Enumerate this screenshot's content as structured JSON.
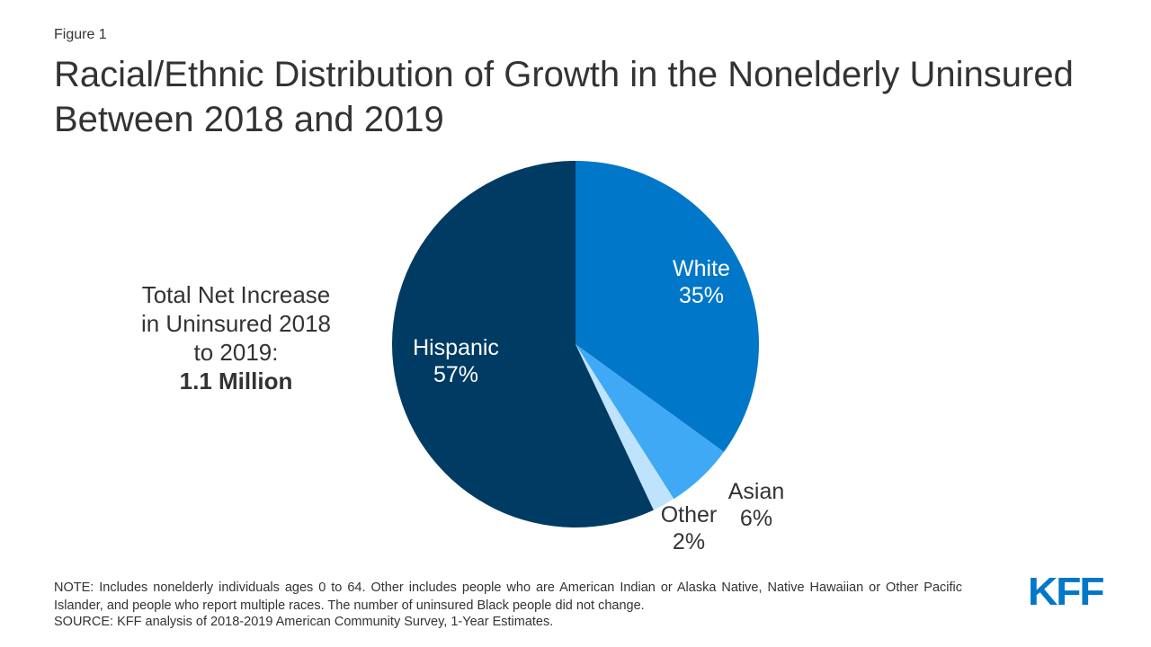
{
  "figure_label": "Figure 1",
  "chart_data": {
    "type": "pie",
    "title": "Racial/Ethnic Distribution of Growth in the Nonelderly Uninsured Between 2018 and 2019",
    "slices": [
      {
        "name": "White",
        "value": 35,
        "label": "35%",
        "color": "#0077c8"
      },
      {
        "name": "Asian",
        "value": 6,
        "label": "6%",
        "color": "#3fa9f5"
      },
      {
        "name": "Other",
        "value": 2,
        "label": "2%",
        "color": "#bfe3fc"
      },
      {
        "name": "Hispanic",
        "value": 57,
        "label": "57%",
        "color": "#003b63"
      }
    ],
    "start": "top",
    "direction": "clockwise"
  },
  "annotation": {
    "text": "Total Net Increase in Uninsured 2018 to 2019:",
    "value": "1.1 Million"
  },
  "note": "NOTE: Includes nonelderly individuals ages 0 to 64. Other includes people who are American Indian or Alaska Native, Native Hawaiian or Other Pacific Islander, and people who report multiple races. The number of uninsured Black people did not change.",
  "source": "SOURCE: KFF analysis of 2018-2019 American Community Survey, 1-Year Estimates.",
  "logo": "KFF"
}
